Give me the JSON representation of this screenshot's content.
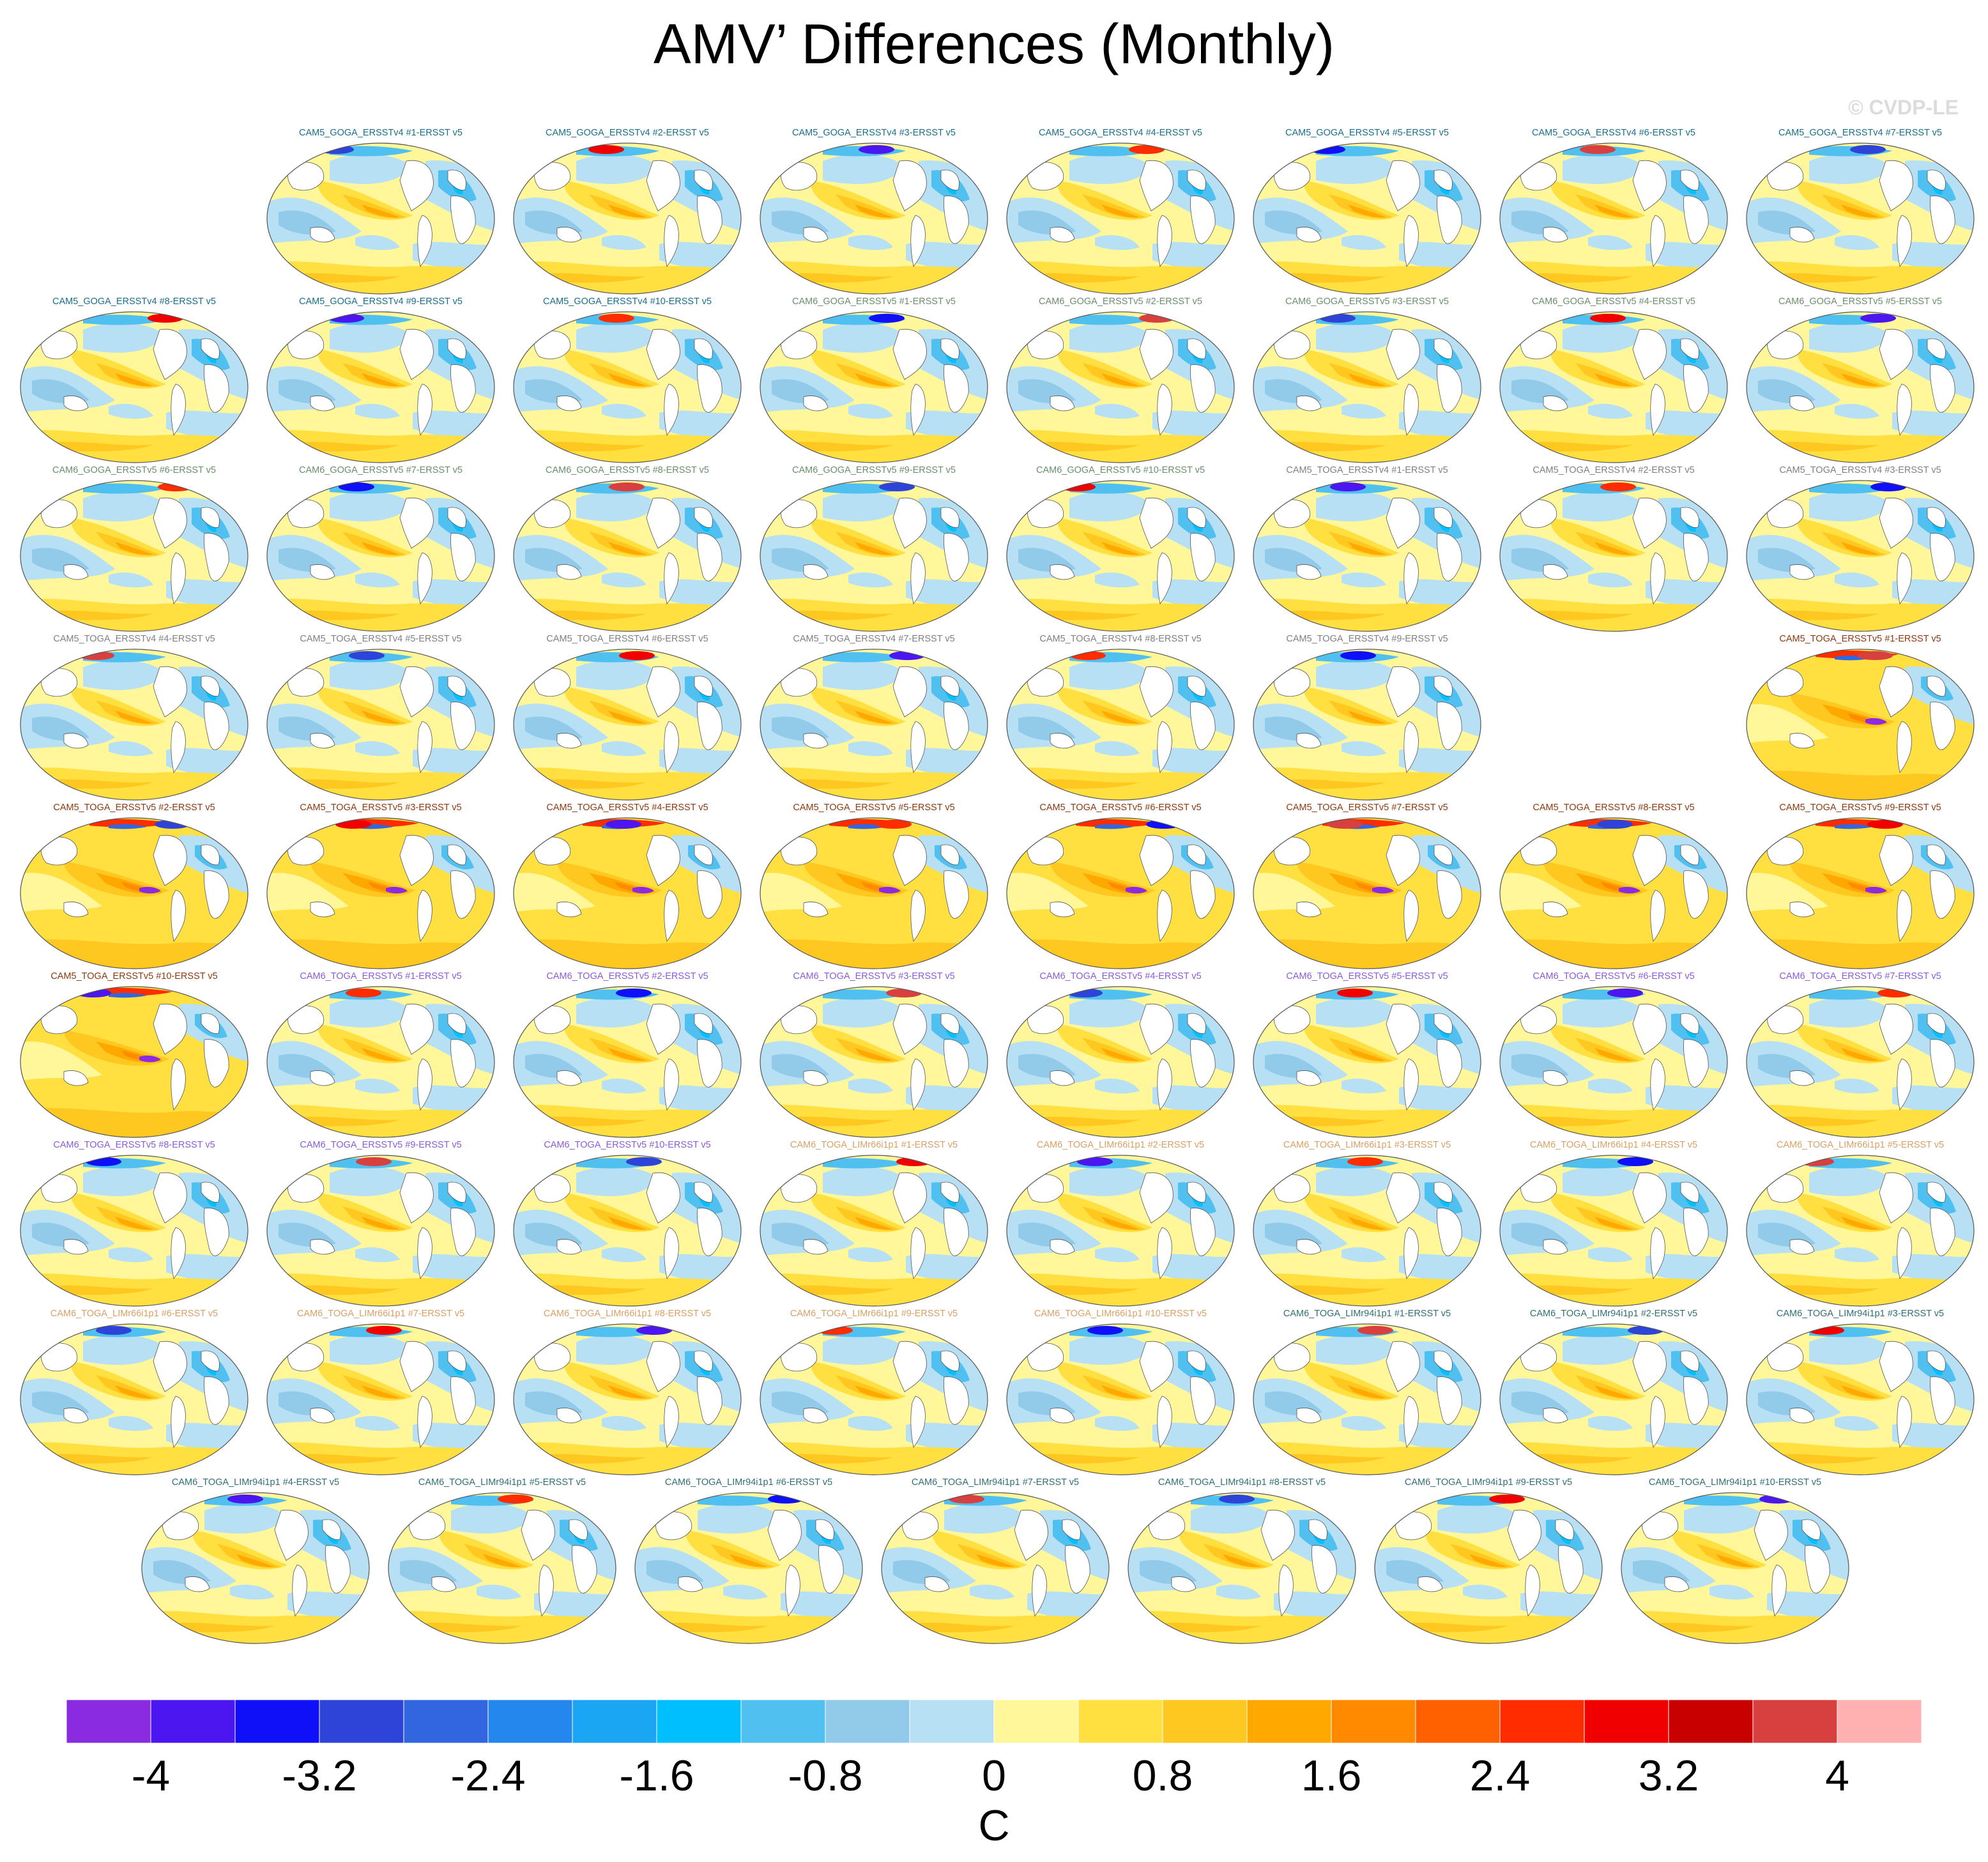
{
  "chart_data": {
    "type": "heatmap",
    "title": "AMV’ Differences (Monthly)",
    "watermark": "© CVDP-LE",
    "colorbar": {
      "unit": "C",
      "levels": [
        -4.4,
        -4,
        -3.6,
        -3.2,
        -2.8,
        -2.4,
        -2,
        -1.6,
        -1.2,
        -0.8,
        -0.4,
        0,
        0.4,
        0.8,
        1.2,
        1.6,
        2,
        2.4,
        2.8,
        3.2,
        3.6,
        4,
        4.4
      ],
      "tick_values": [
        -4,
        -3.2,
        -2.4,
        -1.6,
        -0.8,
        0,
        0.8,
        1.6,
        2.4,
        3.2,
        4
      ],
      "tick_labels": [
        "-4",
        "-3.2",
        "-2.4",
        "-1.6",
        "-0.8",
        "0",
        "0.8",
        "1.6",
        "2.4",
        "3.2",
        "4"
      ],
      "colors": [
        "#8a2be2",
        "#4b16f0",
        "#1010f8",
        "#2e44d8",
        "#3266e0",
        "#2487ee",
        "#1aa6f2",
        "#00bfff",
        "#4fc0f0",
        "#92cbea",
        "#b7e0f5",
        "#fff799",
        "#ffe040",
        "#ffc820",
        "#ffa800",
        "#ff8a00",
        "#ff6000",
        "#ff2c00",
        "#f00000",
        "#c80000",
        "#d84040",
        "#ffb0b0"
      ]
    },
    "panels": [
      {
        "title": "CAM5_GOGA_ERSSTv4 #1-ERSST v5",
        "color": "#1a6e8c",
        "style": "standard"
      },
      {
        "title": "CAM5_GOGA_ERSSTv4 #2-ERSST v5",
        "color": "#1a6e8c",
        "style": "standard"
      },
      {
        "title": "CAM5_GOGA_ERSSTv4 #3-ERSST v5",
        "color": "#1a6e8c",
        "style": "standard"
      },
      {
        "title": "CAM5_GOGA_ERSSTv4 #4-ERSST v5",
        "color": "#1a6e8c",
        "style": "standard"
      },
      {
        "title": "CAM5_GOGA_ERSSTv4 #5-ERSST v5",
        "color": "#1a6e8c",
        "style": "standard"
      },
      {
        "title": "CAM5_GOGA_ERSSTv4 #6-ERSST v5",
        "color": "#1a6e8c",
        "style": "standard"
      },
      {
        "title": "CAM5_GOGA_ERSSTv4 #7-ERSST v5",
        "color": "#1a6e8c",
        "style": "standard"
      },
      {
        "title": "CAM5_GOGA_ERSSTv4 #8-ERSST v5",
        "color": "#1a6e8c",
        "style": "standard"
      },
      {
        "title": "CAM5_GOGA_ERSSTv4 #9-ERSST v5",
        "color": "#1a6e8c",
        "style": "standard"
      },
      {
        "title": "CAM5_GOGA_ERSSTv4 #10-ERSST v5",
        "color": "#1a6e8c",
        "style": "standard"
      },
      {
        "title": "CAM6_GOGA_ERSSTv5 #1-ERSST v5",
        "color": "#6b8e6b",
        "style": "standard"
      },
      {
        "title": "CAM6_GOGA_ERSSTv5 #2-ERSST v5",
        "color": "#6b8e6b",
        "style": "standard"
      },
      {
        "title": "CAM6_GOGA_ERSSTv5 #3-ERSST v5",
        "color": "#6b8e6b",
        "style": "standard"
      },
      {
        "title": "CAM6_GOGA_ERSSTv5 #4-ERSST v5",
        "color": "#6b8e6b",
        "style": "standard"
      },
      {
        "title": "CAM6_GOGA_ERSSTv5 #5-ERSST v5",
        "color": "#6b8e6b",
        "style": "standard"
      },
      {
        "title": "CAM6_GOGA_ERSSTv5 #6-ERSST v5",
        "color": "#6b8e6b",
        "style": "standard"
      },
      {
        "title": "CAM6_GOGA_ERSSTv5 #7-ERSST v5",
        "color": "#6b8e6b",
        "style": "standard"
      },
      {
        "title": "CAM6_GOGA_ERSSTv5 #8-ERSST v5",
        "color": "#6b8e6b",
        "style": "standard"
      },
      {
        "title": "CAM6_GOGA_ERSSTv5 #9-ERSST v5",
        "color": "#6b8e6b",
        "style": "standard"
      },
      {
        "title": "CAM6_GOGA_ERSSTv5 #10-ERSST v5",
        "color": "#6b8e6b",
        "style": "standard"
      },
      {
        "title": "CAM5_TOGA_ERSSTv4 #1-ERSST v5",
        "color": "#808080",
        "style": "standard"
      },
      {
        "title": "CAM5_TOGA_ERSSTv4 #2-ERSST v5",
        "color": "#808080",
        "style": "standard"
      },
      {
        "title": "CAM5_TOGA_ERSSTv4 #3-ERSST v5",
        "color": "#808080",
        "style": "standard"
      },
      {
        "title": "CAM5_TOGA_ERSSTv4 #4-ERSST v5",
        "color": "#808080",
        "style": "standard"
      },
      {
        "title": "CAM5_TOGA_ERSSTv4 #5-ERSST v5",
        "color": "#808080",
        "style": "standard"
      },
      {
        "title": "CAM5_TOGA_ERSSTv4 #6-ERSST v5",
        "color": "#808080",
        "style": "standard"
      },
      {
        "title": "CAM5_TOGA_ERSSTv4 #7-ERSST v5",
        "color": "#808080",
        "style": "standard"
      },
      {
        "title": "CAM5_TOGA_ERSSTv4 #8-ERSST v5",
        "color": "#808080",
        "style": "standard"
      },
      {
        "title": "CAM5_TOGA_ERSSTv4 #9-ERSST v5",
        "color": "#808080",
        "style": "standard"
      },
      {
        "title": "CAM5_TOGA_ERSSTv5 #1-ERSST v5",
        "color": "#8b3a0f",
        "style": "warm"
      },
      {
        "title": "CAM5_TOGA_ERSSTv5 #2-ERSST v5",
        "color": "#8b3a0f",
        "style": "warm"
      },
      {
        "title": "CAM5_TOGA_ERSSTv5 #3-ERSST v5",
        "color": "#8b3a0f",
        "style": "warm"
      },
      {
        "title": "CAM5_TOGA_ERSSTv5 #4-ERSST v5",
        "color": "#8b3a0f",
        "style": "warm"
      },
      {
        "title": "CAM5_TOGA_ERSSTv5 #5-ERSST v5",
        "color": "#8b3a0f",
        "style": "warm"
      },
      {
        "title": "CAM5_TOGA_ERSSTv5 #6-ERSST v5",
        "color": "#8b3a0f",
        "style": "warm"
      },
      {
        "title": "CAM5_TOGA_ERSSTv5 #7-ERSST v5",
        "color": "#8b3a0f",
        "style": "warm"
      },
      {
        "title": "CAM5_TOGA_ERSSTv5 #8-ERSST v5",
        "color": "#8b3a0f",
        "style": "warm"
      },
      {
        "title": "CAM5_TOGA_ERSSTv5 #9-ERSST v5",
        "color": "#8b3a0f",
        "style": "warm"
      },
      {
        "title": "CAM5_TOGA_ERSSTv5 #10-ERSST v5",
        "color": "#8b3a0f",
        "style": "warm"
      },
      {
        "title": "CAM6_TOGA_ERSSTv5 #1-ERSST v5",
        "color": "#8a5cd8",
        "style": "standard"
      },
      {
        "title": "CAM6_TOGA_ERSSTv5 #2-ERSST v5",
        "color": "#8a5cd8",
        "style": "standard"
      },
      {
        "title": "CAM6_TOGA_ERSSTv5 #3-ERSST v5",
        "color": "#8a5cd8",
        "style": "standard"
      },
      {
        "title": "CAM6_TOGA_ERSSTv5 #4-ERSST v5",
        "color": "#8a5cd8",
        "style": "standard"
      },
      {
        "title": "CAM6_TOGA_ERSSTv5 #5-ERSST v5",
        "color": "#8a5cd8",
        "style": "standard"
      },
      {
        "title": "CAM6_TOGA_ERSSTv5 #6-ERSST v5",
        "color": "#8a5cd8",
        "style": "standard"
      },
      {
        "title": "CAM6_TOGA_ERSSTv5 #7-ERSST v5",
        "color": "#8a5cd8",
        "style": "standard"
      },
      {
        "title": "CAM6_TOGA_ERSSTv5 #8-ERSST v5",
        "color": "#8a5cd8",
        "style": "standard"
      },
      {
        "title": "CAM6_TOGA_ERSSTv5 #9-ERSST v5",
        "color": "#8a5cd8",
        "style": "standard"
      },
      {
        "title": "CAM6_TOGA_ERSSTv5 #10-ERSST v5",
        "color": "#8a5cd8",
        "style": "standard"
      },
      {
        "title": "CAM6_TOGA_LIMr66i1p1 #1-ERSST v5",
        "color": "#d9a066",
        "style": "standard"
      },
      {
        "title": "CAM6_TOGA_LIMr66i1p1 #2-ERSST v5",
        "color": "#d9a066",
        "style": "standard"
      },
      {
        "title": "CAM6_TOGA_LIMr66i1p1 #3-ERSST v5",
        "color": "#d9a066",
        "style": "standard"
      },
      {
        "title": "CAM6_TOGA_LIMr66i1p1 #4-ERSST v5",
        "color": "#d9a066",
        "style": "standard"
      },
      {
        "title": "CAM6_TOGA_LIMr66i1p1 #5-ERSST v5",
        "color": "#d9a066",
        "style": "standard"
      },
      {
        "title": "CAM6_TOGA_LIMr66i1p1 #6-ERSST v5",
        "color": "#d9a066",
        "style": "standard"
      },
      {
        "title": "CAM6_TOGA_LIMr66i1p1 #7-ERSST v5",
        "color": "#d9a066",
        "style": "standard"
      },
      {
        "title": "CAM6_TOGA_LIMr66i1p1 #8-ERSST v5",
        "color": "#d9a066",
        "style": "standard"
      },
      {
        "title": "CAM6_TOGA_LIMr66i1p1 #9-ERSST v5",
        "color": "#d9a066",
        "style": "standard"
      },
      {
        "title": "CAM6_TOGA_LIMr66i1p1 #10-ERSST v5",
        "color": "#d9a066",
        "style": "standard"
      },
      {
        "title": "CAM6_TOGA_LIMr94i1p1 #1-ERSST v5",
        "color": "#2f6f74",
        "style": "standard"
      },
      {
        "title": "CAM6_TOGA_LIMr94i1p1 #2-ERSST v5",
        "color": "#2f6f74",
        "style": "standard"
      },
      {
        "title": "CAM6_TOGA_LIMr94i1p1 #3-ERSST v5",
        "color": "#2f6f74",
        "style": "standard"
      },
      {
        "title": "CAM6_TOGA_LIMr94i1p1 #4-ERSST v5",
        "color": "#2f6f74",
        "style": "standard"
      },
      {
        "title": "CAM6_TOGA_LIMr94i1p1 #5-ERSST v5",
        "color": "#2f6f74",
        "style": "standard"
      },
      {
        "title": "CAM6_TOGA_LIMr94i1p1 #6-ERSST v5",
        "color": "#2f6f74",
        "style": "standard"
      },
      {
        "title": "CAM6_TOGA_LIMr94i1p1 #7-ERSST v5",
        "color": "#2f6f74",
        "style": "standard"
      },
      {
        "title": "CAM6_TOGA_LIMr94i1p1 #8-ERSST v5",
        "color": "#2f6f74",
        "style": "standard"
      },
      {
        "title": "CAM6_TOGA_LIMr94i1p1 #9-ERSST v5",
        "color": "#2f6f74",
        "style": "standard"
      },
      {
        "title": "CAM6_TOGA_LIMr94i1p1 #10-ERSST v5",
        "color": "#2f6f74",
        "style": "standard"
      }
    ]
  }
}
